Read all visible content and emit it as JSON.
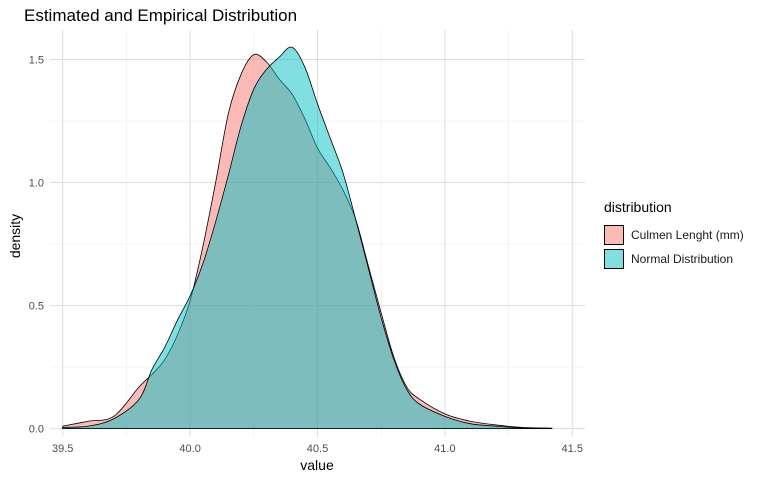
{
  "chart_data": {
    "type": "area",
    "title": "Estimated and Empirical Distribution",
    "xlabel": "value",
    "ylabel": "density",
    "xlim": [
      39.45,
      41.55
    ],
    "ylim": [
      -0.03,
      1.62
    ],
    "x_ticks": [
      "39.5",
      "40.0",
      "40.5",
      "41.0",
      "41.5"
    ],
    "y_ticks": [
      "0.0",
      "0.5",
      "1.0",
      "1.5"
    ],
    "grid": true,
    "legend_title": "distribution",
    "legend_position": "right",
    "series": [
      {
        "name": "Culmen Lenght (mm)",
        "color": "#F8766D",
        "x": [
          39.5,
          39.6,
          39.7,
          39.8,
          39.85,
          39.9,
          39.95,
          40.0,
          40.05,
          40.1,
          40.15,
          40.2,
          40.25,
          40.3,
          40.35,
          40.4,
          40.45,
          40.5,
          40.55,
          40.6,
          40.65,
          40.7,
          40.75,
          40.8,
          40.85,
          40.9,
          41.0,
          41.1,
          41.2,
          41.3,
          41.42
        ],
        "y": [
          0.01,
          0.03,
          0.05,
          0.17,
          0.22,
          0.28,
          0.38,
          0.52,
          0.74,
          1.0,
          1.28,
          1.44,
          1.52,
          1.49,
          1.42,
          1.36,
          1.26,
          1.14,
          1.06,
          0.97,
          0.85,
          0.66,
          0.47,
          0.29,
          0.17,
          0.12,
          0.06,
          0.03,
          0.015,
          0.005,
          0.002
        ]
      },
      {
        "name": "Normal Distribution",
        "color": "#00BFC4",
        "x": [
          39.5,
          39.6,
          39.7,
          39.8,
          39.85,
          39.9,
          39.95,
          40.0,
          40.05,
          40.1,
          40.15,
          40.2,
          40.25,
          40.3,
          40.35,
          40.4,
          40.45,
          40.5,
          40.55,
          40.6,
          40.65,
          40.7,
          40.75,
          40.8,
          40.85,
          40.9,
          41.0,
          41.1,
          41.2,
          41.3,
          41.42
        ],
        "y": [
          0.005,
          0.01,
          0.04,
          0.12,
          0.24,
          0.33,
          0.44,
          0.54,
          0.67,
          0.84,
          1.03,
          1.23,
          1.38,
          1.46,
          1.51,
          1.55,
          1.47,
          1.32,
          1.18,
          1.04,
          0.85,
          0.65,
          0.45,
          0.28,
          0.16,
          0.1,
          0.05,
          0.02,
          0.01,
          0.003,
          0.001
        ]
      }
    ]
  }
}
